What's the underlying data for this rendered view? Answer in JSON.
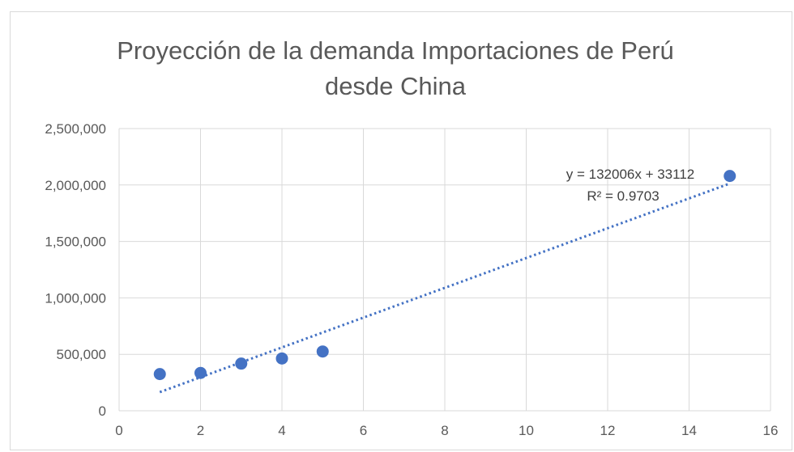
{
  "chart_data": {
    "type": "scatter",
    "title": [
      "Proyección de la demanda Importaciones de Perú",
      "desde China"
    ],
    "xlabel": "",
    "ylabel": "",
    "xlim": [
      0,
      16
    ],
    "ylim": [
      0,
      2500000
    ],
    "x_ticks": [
      0,
      2,
      4,
      6,
      8,
      10,
      12,
      14,
      16
    ],
    "y_ticks": [
      0,
      500000,
      1000000,
      1500000,
      2000000,
      2500000
    ],
    "x_tick_labels": [
      "0",
      "2",
      "4",
      "6",
      "8",
      "10",
      "12",
      "14",
      "16"
    ],
    "y_tick_labels": [
      "0",
      "500,000",
      "1,000,000",
      "1,500,000",
      "2,000,000",
      "2,500,000"
    ],
    "grid": true,
    "points": [
      {
        "x": 1,
        "y": 325000
      },
      {
        "x": 2,
        "y": 335000
      },
      {
        "x": 3,
        "y": 418000
      },
      {
        "x": 4,
        "y": 463000
      },
      {
        "x": 5,
        "y": 525000
      },
      {
        "x": 15,
        "y": 2080000
      }
    ],
    "trendline": {
      "type": "linear",
      "slope": 132006,
      "intercept": 33112,
      "x_range": [
        1,
        15
      ],
      "equation_label": "y = 132006x + 33112",
      "r2_label": "R² = 0.9703",
      "style": "dotted"
    },
    "colors": {
      "marker": "#4472c4",
      "trendline": "#4472c4",
      "grid": "#d9d9d9",
      "text": "#595959"
    }
  }
}
